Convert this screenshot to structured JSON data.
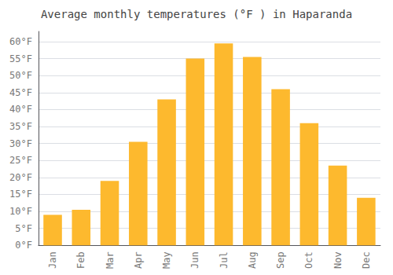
{
  "chart_data": {
    "type": "bar",
    "title": "Average monthly temperatures (°F ) in Haparanda",
    "categories": [
      "Jan",
      "Feb",
      "Mar",
      "Apr",
      "May",
      "Jun",
      "Jul",
      "Aug",
      "Sep",
      "Oct",
      "Nov",
      "Dec"
    ],
    "values": [
      9.0,
      10.5,
      19.0,
      30.5,
      43.0,
      55.0,
      59.5,
      55.5,
      46.0,
      36.0,
      23.5,
      14.0
    ],
    "color": "#FDB92E",
    "ylim": [
      0,
      63
    ],
    "yticks": [
      {
        "value": 0,
        "label": "0°F"
      },
      {
        "value": 5,
        "label": "5°F"
      },
      {
        "value": 10,
        "label": "10°F"
      },
      {
        "value": 15,
        "label": "15°F"
      },
      {
        "value": 20,
        "label": "20°F"
      },
      {
        "value": 25,
        "label": "25°F"
      },
      {
        "value": 30,
        "label": "30°F"
      },
      {
        "value": 35,
        "label": "35°F"
      },
      {
        "value": 40,
        "label": "40°F"
      },
      {
        "value": 45,
        "label": "45°F"
      },
      {
        "value": 50,
        "label": "50°F"
      },
      {
        "value": 55,
        "label": "55°F"
      },
      {
        "value": 60,
        "label": "60°F"
      }
    ],
    "grid": true
  }
}
